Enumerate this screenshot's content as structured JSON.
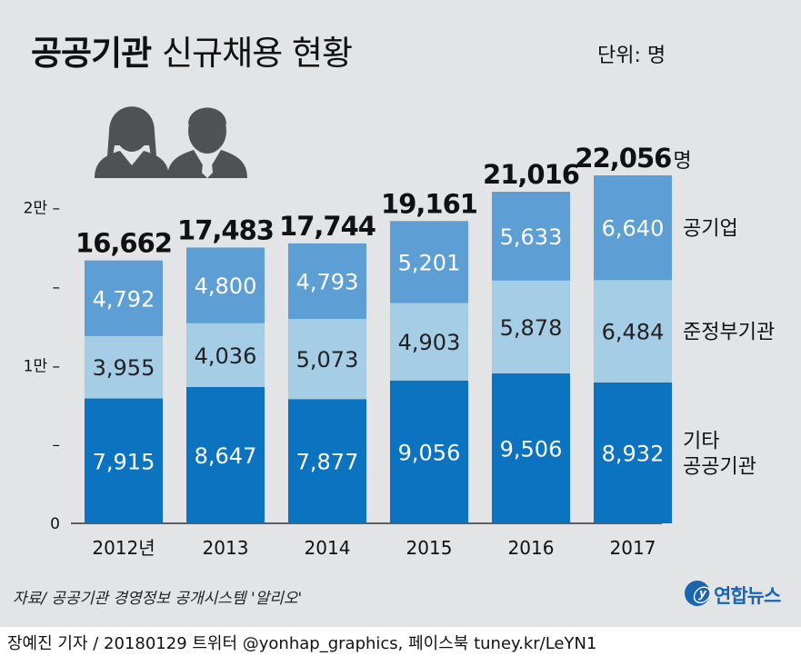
{
  "header": {
    "title_bold": "공공기관",
    "title_rest": "신규채용 현황",
    "unit": "단위: 명"
  },
  "footer": {
    "source": "자료/ 공공기관 경영정보 공개시스템 '알리오'",
    "logo_mark": "ⓨ",
    "logo": "연합뉴스",
    "credit": "장예진 기자 / 20180129 트위터 @yonhap_graphics, 페이스북 tuney.kr/LeYN1"
  },
  "chart_data": {
    "type": "bar",
    "stacked": true,
    "categories": [
      "2012년",
      "2013",
      "2014",
      "2015",
      "2016",
      "2017"
    ],
    "series": [
      {
        "name": "기타 공공기관",
        "label_lines": [
          "기타",
          "공공기관"
        ],
        "color": "#0b73bf",
        "label_color": "#ffffff",
        "values": [
          7915,
          8647,
          7877,
          9056,
          9506,
          8932
        ]
      },
      {
        "name": "준정부기관",
        "label_lines": [
          "준정부기관"
        ],
        "color": "#a5cde6",
        "label_color": "#222222",
        "values": [
          3955,
          4036,
          5073,
          4903,
          5878,
          6484
        ]
      },
      {
        "name": "공기업",
        "label_lines": [
          "공기업"
        ],
        "color": "#5d9fd4",
        "label_color": "#ffffff",
        "values": [
          4792,
          4800,
          4793,
          5201,
          5633,
          6640
        ]
      }
    ],
    "totals": [
      "16,662",
      "17,483",
      "17,744",
      "19,161",
      "21,016",
      "22,056"
    ],
    "total_suffix": "명",
    "y_ticks": [
      {
        "value": 0,
        "label": "0"
      },
      {
        "value": 5000,
        "label": "–"
      },
      {
        "value": 10000,
        "label": "1만 –"
      },
      {
        "value": 15000,
        "label": "–"
      },
      {
        "value": 20000,
        "label": "2만 –"
      }
    ],
    "ylim": [
      0,
      22056
    ],
    "legend": "right"
  }
}
